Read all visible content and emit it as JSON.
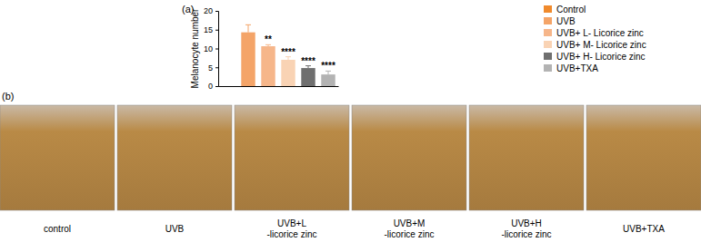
{
  "chart_data": {
    "type": "bar",
    "y_label": "Melanocyte number",
    "categories": [
      "Control",
      "UVB",
      "UVB+ L- Licorice zinc",
      "UVB+ M- Licorice zinc",
      "UVB+ H- Licorice zinc",
      "UVB+TXA"
    ],
    "values": [
      null,
      14.3,
      10.6,
      7.0,
      4.8,
      3.1
    ],
    "errors": [
      null,
      2.0,
      0.4,
      0.8,
      0.6,
      0.9
    ],
    "annotations": [
      null,
      null,
      "**",
      "****",
      "****",
      "****"
    ],
    "colors": [
      "#f08a2c",
      "#f4a468",
      "#f6b68a",
      "#f9d3b4",
      "#6f6f6f",
      "#b3b3b3"
    ],
    "ylim": [
      0,
      20
    ],
    "yticks": [
      0,
      5,
      10,
      15,
      20
    ],
    "legend": "right",
    "tick_labels": "y",
    "grid": false
  },
  "figure": {
    "panel_labels": [
      "(a)",
      "(b)"
    ],
    "image_captions": [
      [
        "control"
      ],
      [
        "UVB"
      ],
      [
        "UVB+L",
        "-licorice zinc"
      ],
      [
        "UVB+M",
        "-licorice zinc"
      ],
      [
        "UVB+H",
        "-licorice zinc"
      ],
      [
        "UVB+TXA"
      ]
    ]
  }
}
